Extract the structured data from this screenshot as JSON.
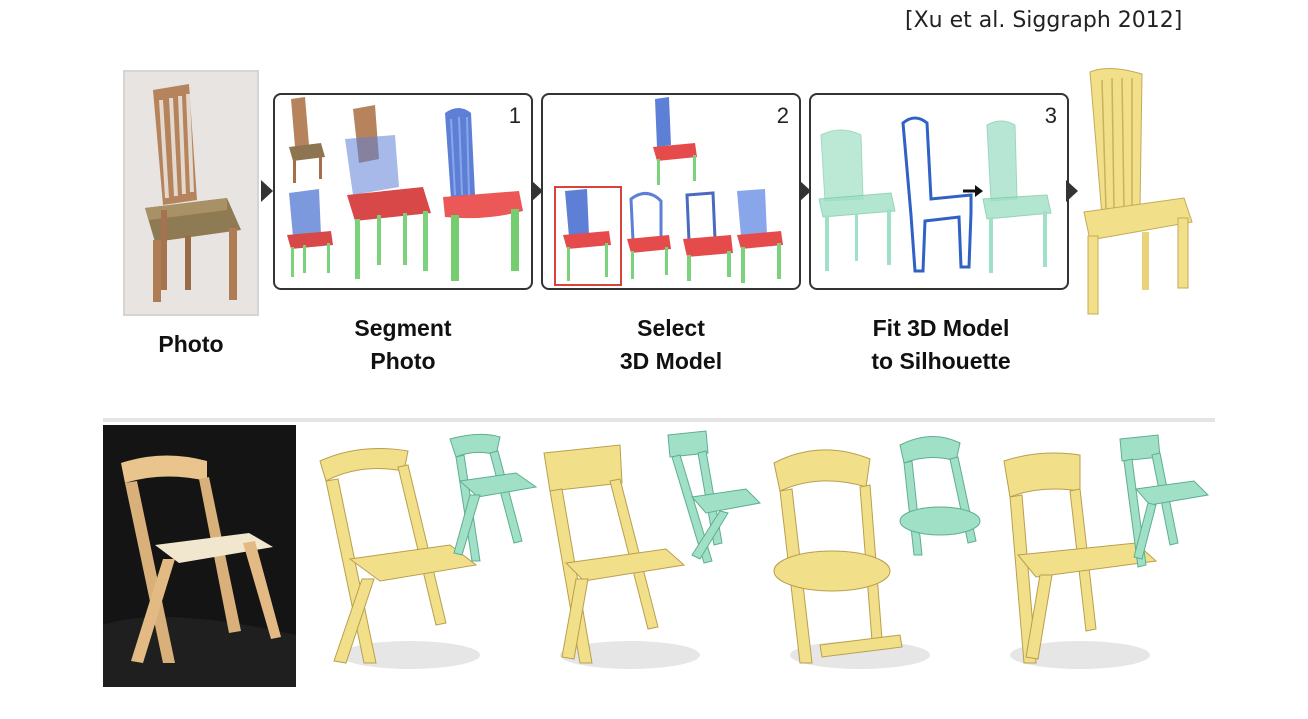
{
  "citation": "[Xu et al. Siggraph 2012]",
  "steps": [
    {
      "number": "1"
    },
    {
      "number": "2"
    },
    {
      "number": "3"
    }
  ],
  "captions": {
    "photo": "Photo",
    "segment_line1": "Segment",
    "segment_line2": "Photo",
    "select_line1": "Select",
    "select_line2": "3D Model",
    "fit_line1": "Fit 3D Model",
    "fit_line2": "to Silhouette"
  },
  "colors": {
    "wood": "#c8a079",
    "yellow_model": "#f2df8a",
    "mint_model": "#9fe0c6",
    "seg_blue": "#5d7fd6",
    "seg_red": "#e64b4b",
    "seg_green": "#7cd27c",
    "photo_dark_bg": "#141414"
  }
}
